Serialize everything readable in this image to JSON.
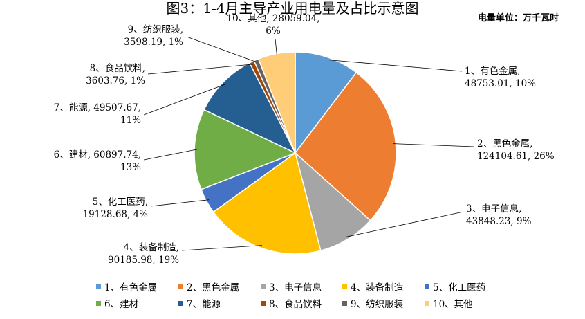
{
  "chart_data": {
    "type": "pie",
    "title": "图3：1-4月主导产业用电量及占比示意图",
    "unit_note": "电量单位：万千瓦时",
    "legend_position": "bottom",
    "slices": [
      {
        "name": "1、有色金属",
        "value": 48753.01,
        "percent": "10%",
        "color": "#5b9bd5",
        "label_lines": [
          "1、有色金属,",
          "48753.01, 10%"
        ]
      },
      {
        "name": "2、黑色金属",
        "value": 124104.61,
        "percent": "26%",
        "color": "#ed7d31",
        "label_lines": [
          "2、黑色金属,",
          "124104.61, 26%"
        ]
      },
      {
        "name": "3、电子信息",
        "value": 43848.23,
        "percent": "9%",
        "color": "#a5a5a5",
        "label_lines": [
          "3、电子信息,",
          "43848.23, 9%"
        ]
      },
      {
        "name": "4、装备制造",
        "value": 90185.98,
        "percent": "19%",
        "color": "#ffc000",
        "label_lines": [
          "4、装备制造,",
          "90185.98, 19%"
        ]
      },
      {
        "name": "5、化工医药",
        "value": 19128.68,
        "percent": "4%",
        "color": "#4472c4",
        "label_lines": [
          "5、化工医药,",
          "19128.68, 4%"
        ]
      },
      {
        "name": "6、建材",
        "value": 60897.74,
        "percent": "13%",
        "color": "#70ad47",
        "label_lines": [
          "6、建材, 60897.74,",
          "13%"
        ]
      },
      {
        "name": "7、能源",
        "value": 49507.67,
        "percent": "11%",
        "color": "#255e91",
        "label_lines": [
          "7、能源, 49507.67,",
          "11%"
        ]
      },
      {
        "name": "8、食品饮料",
        "value": 3603.76,
        "percent": "1%",
        "color": "#9e480e",
        "label_lines": [
          "8、食品饮料,",
          "3603.76, 1%"
        ]
      },
      {
        "name": "9、纺织服装",
        "value": 3598.19,
        "percent": "1%",
        "color": "#636363",
        "label_lines": [
          "9、纺织服装,",
          "3598.19, 1%"
        ]
      },
      {
        "name": "10、其他",
        "value": 28059.04,
        "percent": "6%",
        "color": "#ffcc77",
        "label_lines": [
          "10、其他, 28059.04,",
          "6%"
        ]
      }
    ]
  }
}
